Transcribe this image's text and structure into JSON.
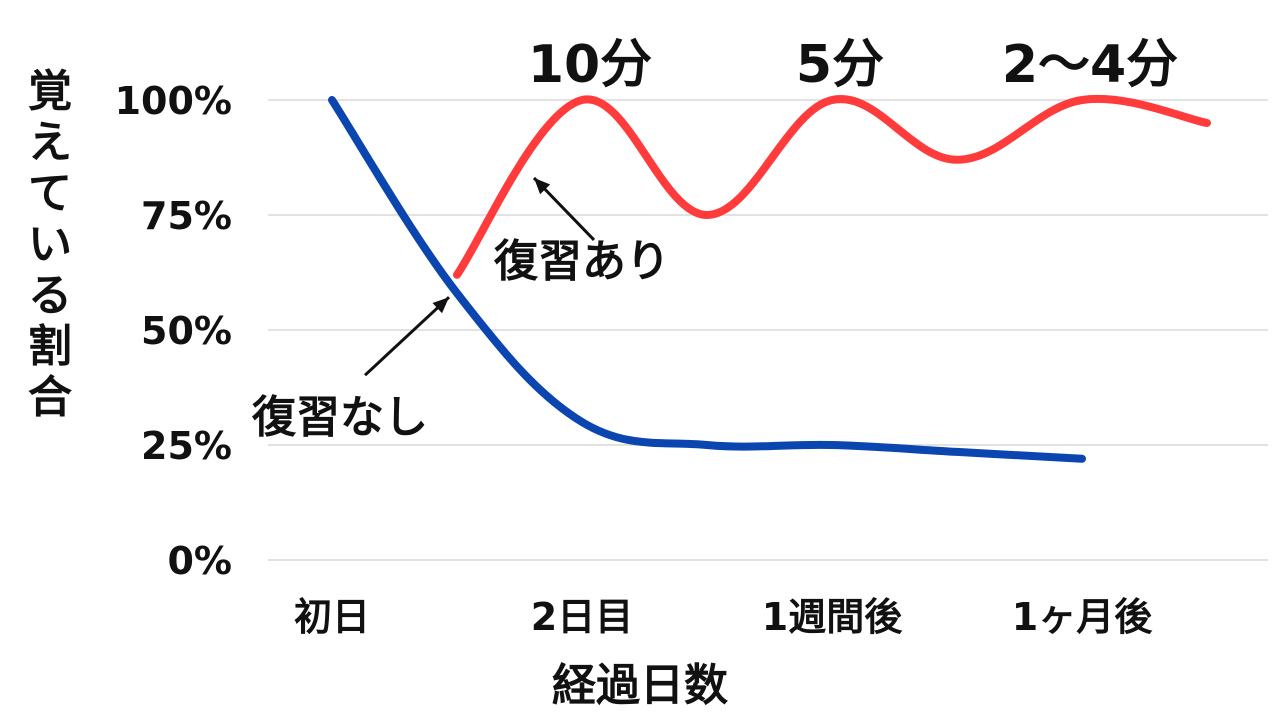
{
  "chart_data": {
    "type": "line",
    "xlabel": "経過日数",
    "ylabel": "覚えている割合",
    "ylim": [
      0,
      100
    ],
    "ytick_labels": [
      "0%",
      "25%",
      "50%",
      "75%",
      "100%"
    ],
    "yticks": [
      0,
      25,
      50,
      75,
      100
    ],
    "categories": [
      "初日",
      "2日目",
      "1週間後",
      "1ヶ月後"
    ],
    "grid": true,
    "legend": "none",
    "series": [
      {
        "name": "復習なし",
        "color": "#0b45b0",
        "x": [
          0.0,
          0.5,
          1.0,
          1.5,
          2.0,
          2.5,
          3.0
        ],
        "values": [
          100,
          58,
          30,
          25,
          25,
          23.5,
          22
        ]
      },
      {
        "name": "復習あり",
        "color": "#ff3b3b",
        "x": [
          0.5,
          1.0,
          1.5,
          2.0,
          2.5,
          3.0,
          3.5
        ],
        "values": [
          62,
          100,
          75,
          100,
          87,
          100,
          95
        ]
      }
    ],
    "annotations": [
      {
        "text": "10分",
        "x": 1.0
      },
      {
        "text": "5分",
        "x": 2.0
      },
      {
        "text": "2〜4分",
        "x": 3.0
      }
    ]
  }
}
